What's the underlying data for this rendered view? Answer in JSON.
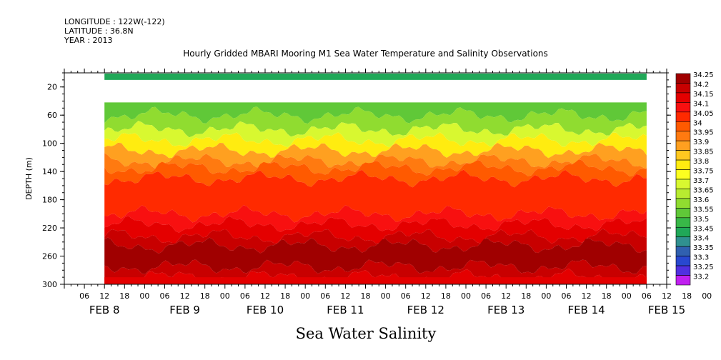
{
  "header": {
    "longitude": "LONGITUDE : 122W(-122)",
    "latitude": "LATITUDE : 36.8N",
    "year": "YEAR : 2013"
  },
  "chart_data": {
    "type": "heatmap",
    "title": "Hourly Gridded MBARI Mooring M1 Sea Water Temperature and Salinity Observations",
    "ylabel": "DEPTH (m)",
    "xlabel": "Sea Water Salinity",
    "ylim": [
      300,
      0
    ],
    "yticks": [
      20,
      60,
      100,
      140,
      180,
      220,
      260,
      300
    ],
    "hour_ticks": [
      "06",
      "12",
      "18",
      "00",
      "06",
      "12",
      "18",
      "00",
      "06",
      "12",
      "18",
      "00",
      "06",
      "12",
      "18",
      "00",
      "06",
      "12",
      "18",
      "00",
      "06",
      "12",
      "18",
      "00",
      "06",
      "12",
      "18",
      "00",
      "06",
      "12",
      "18",
      "00"
    ],
    "day_labels": [
      "FEB  8",
      "FEB  9",
      "FEB 10",
      "FEB 11",
      "FEB 12",
      "FEB 13",
      "FEB 14",
      "FEB 15"
    ],
    "data_start": "FEB 8 12:00",
    "data_end": "FEB 15 06:00",
    "surface_band": {
      "depth_range": [
        1,
        10
      ],
      "value": 33.45
    },
    "missing_depth_range": [
      10,
      42
    ],
    "colorbar": {
      "levels": [
        "34.25",
        "34.2",
        "34.15",
        "34.1",
        "34.05",
        "34",
        "33.95",
        "33.9",
        "33.85",
        "33.8",
        "33.75",
        "33.7",
        "33.65",
        "33.6",
        "33.55",
        "33.5",
        "33.45",
        "33.4",
        "33.35",
        "33.3",
        "33.25",
        "33.2"
      ],
      "colors": [
        "#a00000",
        "#c80000",
        "#e40000",
        "#f81010",
        "#ff2a00",
        "#ff5a00",
        "#ff7a10",
        "#ffa020",
        "#ffc820",
        "#ffec10",
        "#fcff20",
        "#d8f830",
        "#b8ec30",
        "#90dc30",
        "#60c838",
        "#38b848",
        "#20a858",
        "#309090",
        "#3060b0",
        "#2848d0",
        "#5030e0",
        "#c020f0"
      ]
    },
    "depth_profile": [
      {
        "depth": 42,
        "value": 33.55
      },
      {
        "depth": 60,
        "value": 33.6
      },
      {
        "depth": 80,
        "value": 33.7
      },
      {
        "depth": 95,
        "value": 33.8
      },
      {
        "depth": 110,
        "value": 33.9
      },
      {
        "depth": 125,
        "value": 33.95
      },
      {
        "depth": 135,
        "value": 34.0
      },
      {
        "depth": 150,
        "value": 34.05
      },
      {
        "depth": 200,
        "value": 34.1
      },
      {
        "depth": 215,
        "value": 34.15
      },
      {
        "depth": 232,
        "value": 34.2
      },
      {
        "depth": 245,
        "value": 34.25
      },
      {
        "depth": 275,
        "value": 34.2
      },
      {
        "depth": 290,
        "value": 34.15
      },
      {
        "depth": 300,
        "value": 34.15
      }
    ]
  }
}
